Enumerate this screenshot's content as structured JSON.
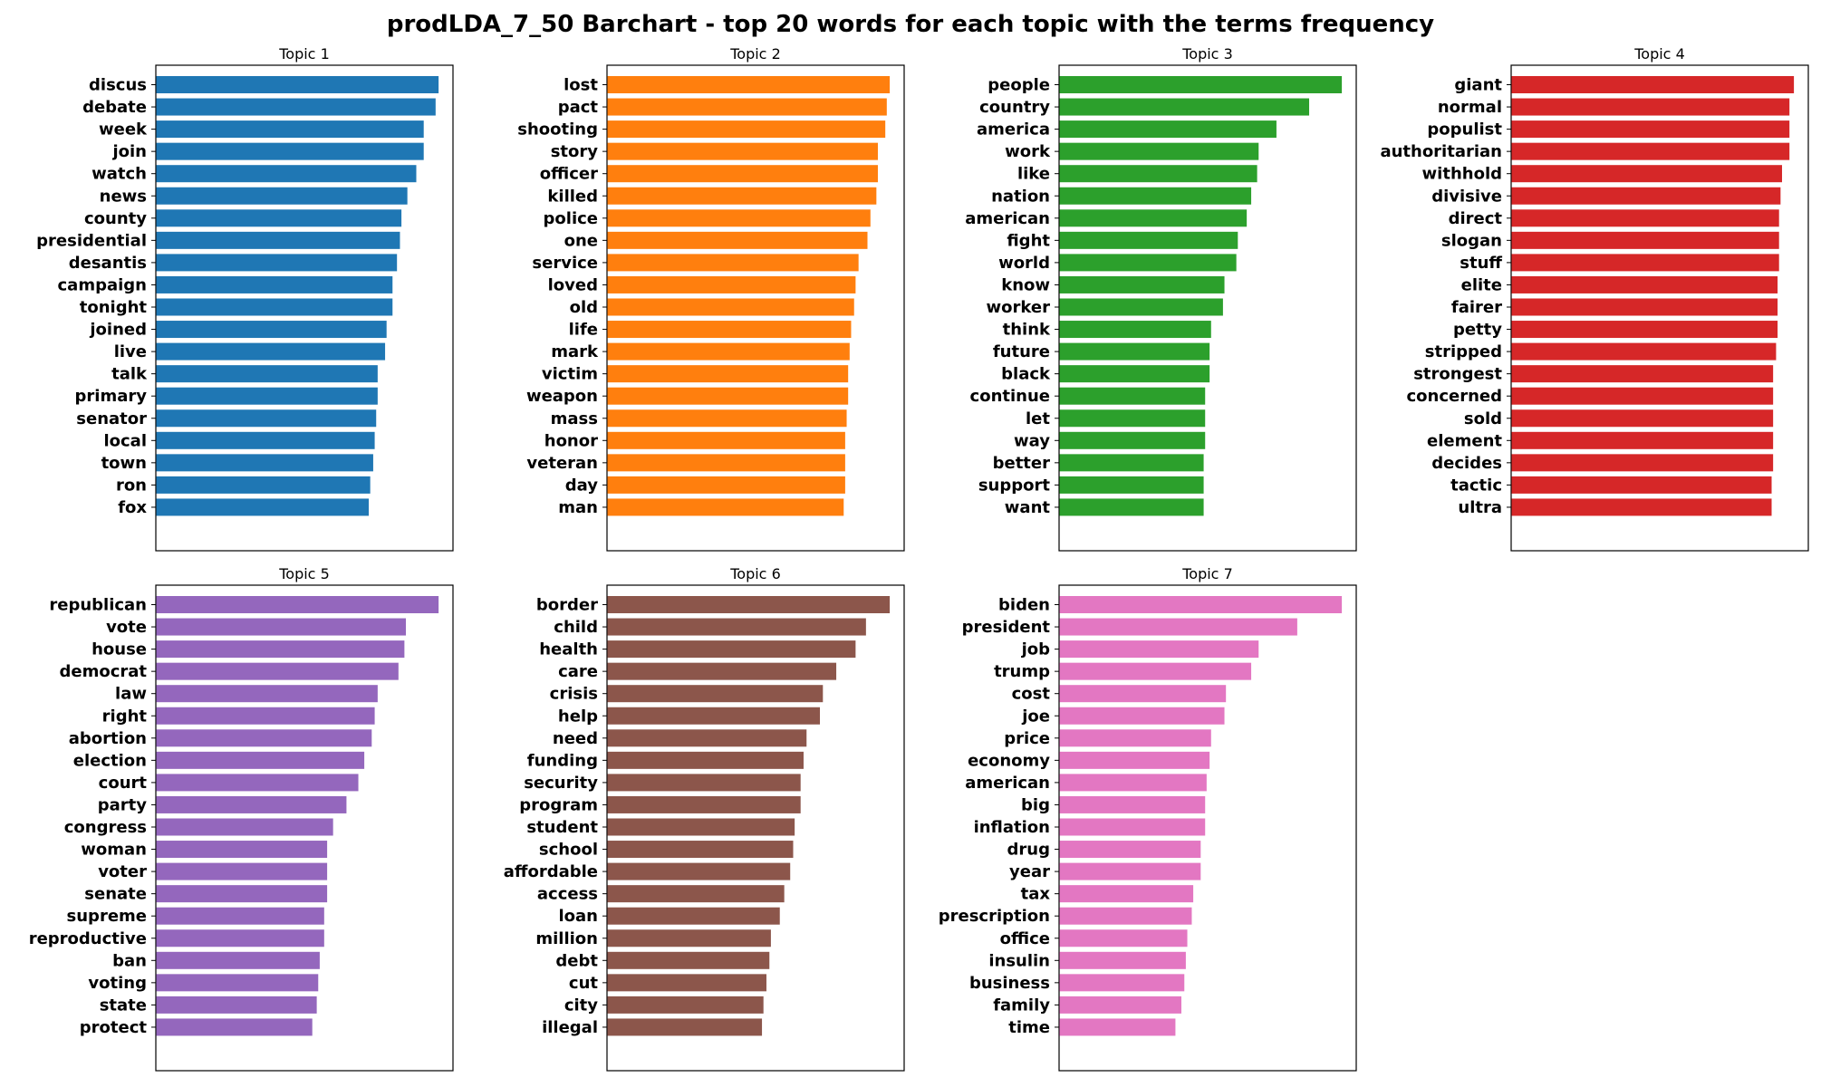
{
  "figure": {
    "title": "prodLDA_7_50 Barchart - top 20 words for each topic with the terms frequency"
  },
  "chart_data": [
    {
      "type": "bar",
      "orientation": "horizontal",
      "title": "Topic 1",
      "color": "#1f77b4",
      "xlim": [
        0,
        1
      ],
      "x_ticks_visible": false,
      "categories": [
        "discus",
        "debate",
        "week",
        "join",
        "watch",
        "news",
        "county",
        "presidential",
        "desantis",
        "campaign",
        "tonight",
        "joined",
        "live",
        "talk",
        "primary",
        "senator",
        "local",
        "town",
        "ron",
        "fox"
      ],
      "values": [
        0.95,
        0.94,
        0.9,
        0.9,
        0.875,
        0.845,
        0.825,
        0.82,
        0.81,
        0.795,
        0.795,
        0.775,
        0.77,
        0.745,
        0.745,
        0.74,
        0.735,
        0.73,
        0.72,
        0.715
      ]
    },
    {
      "type": "bar",
      "orientation": "horizontal",
      "title": "Topic 2",
      "color": "#ff7f0e",
      "xlim": [
        0,
        1
      ],
      "x_ticks_visible": false,
      "categories": [
        "lost",
        "pact",
        "shooting",
        "story",
        "officer",
        "killed",
        "police",
        "one",
        "service",
        "loved",
        "old",
        "life",
        "mark",
        "victim",
        "weapon",
        "mass",
        "honor",
        "veteran",
        "day",
        "man"
      ],
      "values": [
        0.95,
        0.94,
        0.935,
        0.91,
        0.91,
        0.905,
        0.885,
        0.875,
        0.845,
        0.835,
        0.83,
        0.82,
        0.815,
        0.81,
        0.81,
        0.805,
        0.8,
        0.8,
        0.8,
        0.795
      ]
    },
    {
      "type": "bar",
      "orientation": "horizontal",
      "title": "Topic 3",
      "color": "#2ca02c",
      "xlim": [
        0,
        1
      ],
      "x_ticks_visible": false,
      "categories": [
        "people",
        "country",
        "america",
        "work",
        "like",
        "nation",
        "american",
        "fight",
        "world",
        "know",
        "worker",
        "think",
        "future",
        "black",
        "continue",
        "let",
        "way",
        "better",
        "support",
        "want"
      ],
      "values": [
        0.95,
        0.84,
        0.73,
        0.67,
        0.665,
        0.645,
        0.63,
        0.6,
        0.595,
        0.555,
        0.55,
        0.51,
        0.505,
        0.505,
        0.49,
        0.49,
        0.49,
        0.485,
        0.485,
        0.485
      ]
    },
    {
      "type": "bar",
      "orientation": "horizontal",
      "title": "Topic 4",
      "color": "#d62728",
      "xlim": [
        0,
        1
      ],
      "x_ticks_visible": false,
      "categories": [
        "giant",
        "normal",
        "populist",
        "authoritarian",
        "withhold",
        "divisive",
        "direct",
        "slogan",
        "stuff",
        "elite",
        "fairer",
        "petty",
        "stripped",
        "strongest",
        "concerned",
        "sold",
        "element",
        "decides",
        "tactic",
        "ultra"
      ],
      "values": [
        0.95,
        0.935,
        0.935,
        0.935,
        0.91,
        0.905,
        0.9,
        0.9,
        0.9,
        0.895,
        0.895,
        0.895,
        0.89,
        0.88,
        0.88,
        0.88,
        0.88,
        0.88,
        0.875,
        0.875
      ]
    },
    {
      "type": "bar",
      "orientation": "horizontal",
      "title": "Topic 5",
      "color": "#9467bd",
      "xlim": [
        0,
        1
      ],
      "x_ticks_visible": false,
      "categories": [
        "republican",
        "vote",
        "house",
        "democrat",
        "law",
        "right",
        "abortion",
        "election",
        "court",
        "party",
        "congress",
        "woman",
        "voter",
        "senate",
        "supreme",
        "reproductive",
        "ban",
        "voting",
        "state",
        "protect"
      ],
      "values": [
        0.95,
        0.84,
        0.835,
        0.815,
        0.745,
        0.735,
        0.725,
        0.7,
        0.68,
        0.64,
        0.595,
        0.575,
        0.575,
        0.575,
        0.565,
        0.565,
        0.55,
        0.545,
        0.54,
        0.525
      ]
    },
    {
      "type": "bar",
      "orientation": "horizontal",
      "title": "Topic 6",
      "color": "#8c564b",
      "xlim": [
        0,
        1
      ],
      "x_ticks_visible": false,
      "categories": [
        "border",
        "child",
        "health",
        "care",
        "crisis",
        "help",
        "need",
        "funding",
        "security",
        "program",
        "student",
        "school",
        "affordable",
        "access",
        "loan",
        "million",
        "debt",
        "cut",
        "city",
        "illegal"
      ],
      "values": [
        0.95,
        0.87,
        0.835,
        0.77,
        0.725,
        0.715,
        0.67,
        0.66,
        0.65,
        0.65,
        0.63,
        0.625,
        0.615,
        0.595,
        0.58,
        0.55,
        0.545,
        0.535,
        0.525,
        0.52
      ]
    },
    {
      "type": "bar",
      "orientation": "horizontal",
      "title": "Topic 7",
      "color": "#e377c2",
      "xlim": [
        0,
        1
      ],
      "x_ticks_visible": false,
      "categories": [
        "biden",
        "president",
        "job",
        "trump",
        "cost",
        "joe",
        "price",
        "economy",
        "american",
        "big",
        "inflation",
        "drug",
        "year",
        "tax",
        "prescription",
        "office",
        "insulin",
        "business",
        "family",
        "time"
      ],
      "values": [
        0.95,
        0.8,
        0.67,
        0.645,
        0.56,
        0.555,
        0.51,
        0.505,
        0.495,
        0.49,
        0.49,
        0.475,
        0.475,
        0.45,
        0.445,
        0.43,
        0.425,
        0.42,
        0.41,
        0.39
      ]
    }
  ]
}
